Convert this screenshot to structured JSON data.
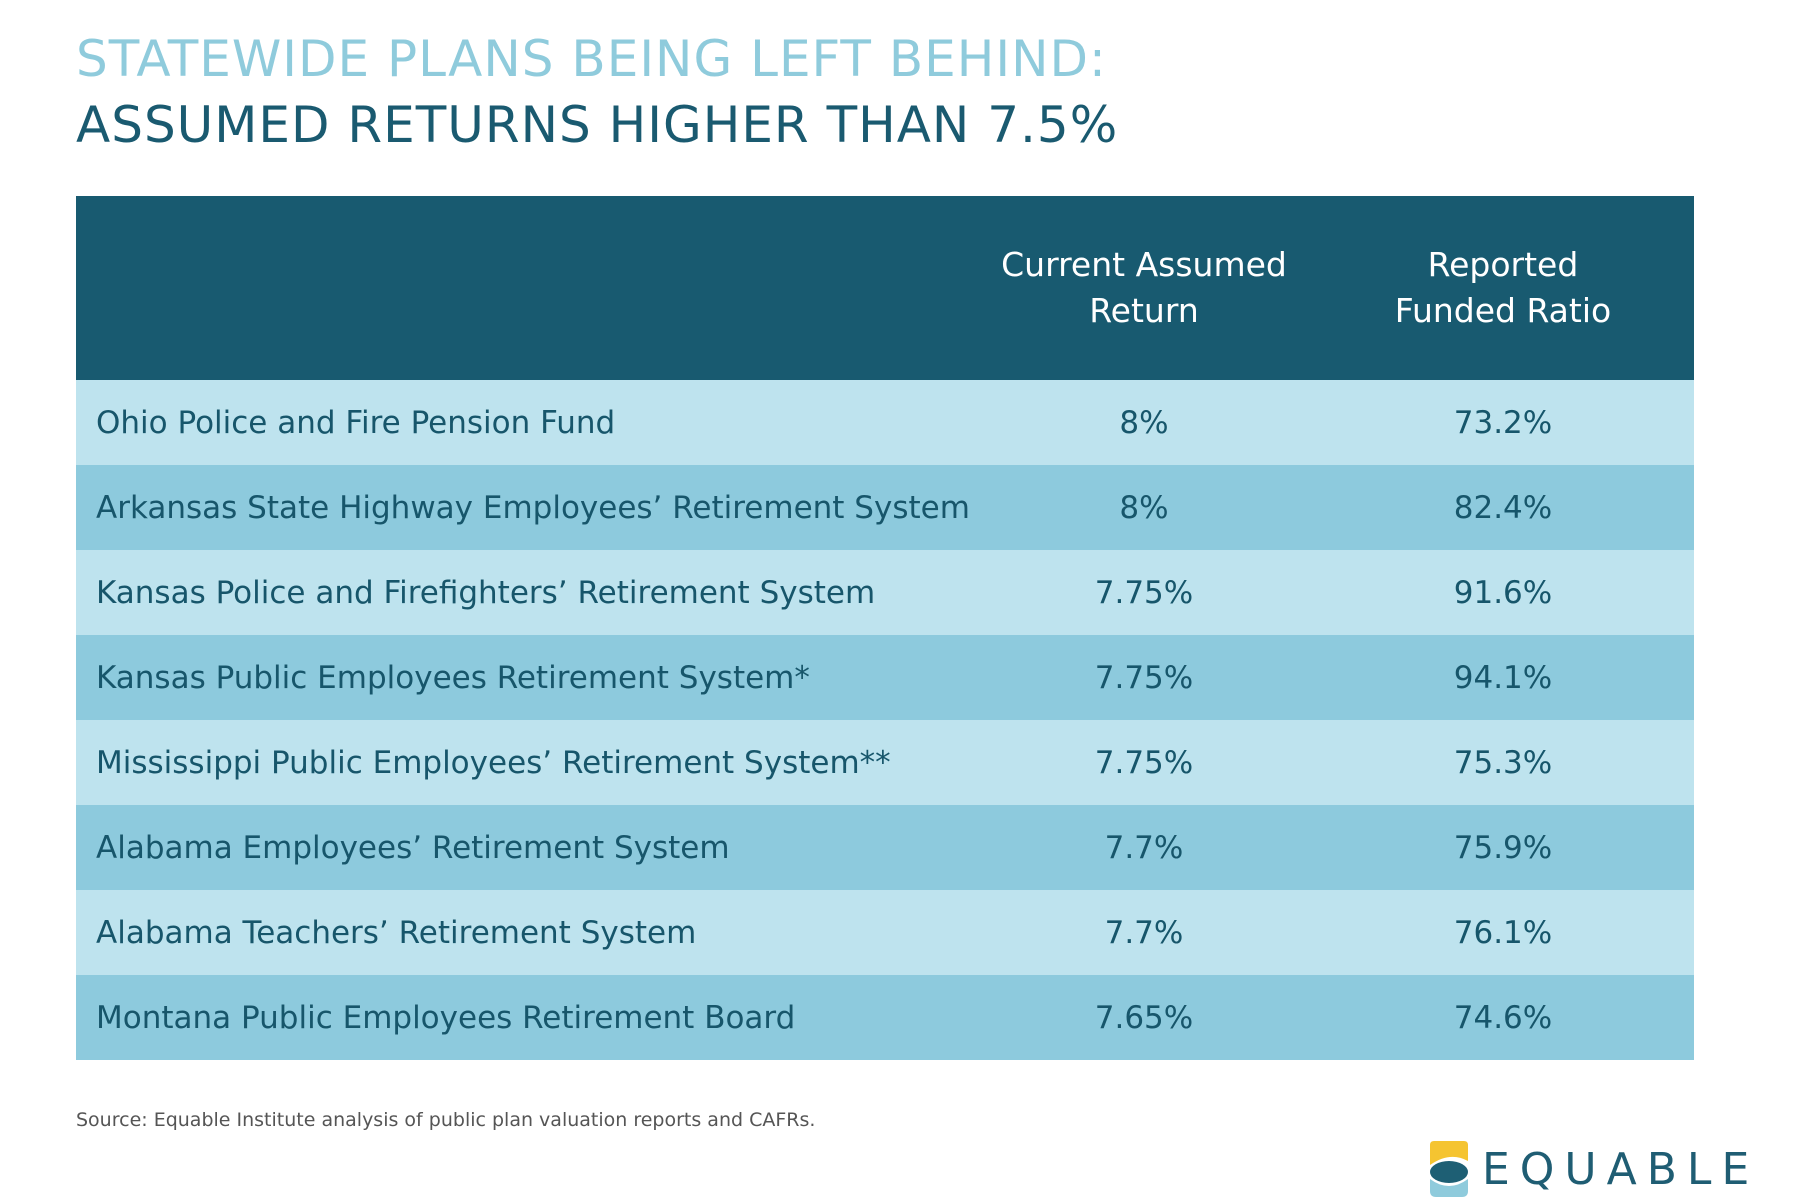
{
  "title": {
    "line1": "STATEWIDE PLANS BEING LEFT BEHIND:",
    "line2": "ASSUMED RETURNS HIGHER THAN 7.5%"
  },
  "chart_data": {
    "type": "table",
    "columns": [
      "",
      "Current Assumed\nReturn",
      "Reported\nFunded Ratio"
    ],
    "rows": [
      {
        "plan": "Ohio Police and Fire Pension Fund",
        "assumed_return": "8%",
        "funded_ratio": "73.2%"
      },
      {
        "plan": "Arkansas State Highway Employees’ Retirement System",
        "assumed_return": "8%",
        "funded_ratio": "82.4%"
      },
      {
        "plan": "Kansas Police and Firefighters’ Retirement System",
        "assumed_return": "7.75%",
        "funded_ratio": "91.6%"
      },
      {
        "plan": "Kansas Public Employees Retirement System*",
        "assumed_return": "7.75%",
        "funded_ratio": "94.1%"
      },
      {
        "plan": "Mississippi Public Employees’ Retirement System**",
        "assumed_return": "7.75%",
        "funded_ratio": "75.3%"
      },
      {
        "plan": "Alabama Employees’ Retirement System",
        "assumed_return": "7.7%",
        "funded_ratio": "75.9%"
      },
      {
        "plan": "Alabama Teachers’ Retirement System",
        "assumed_return": "7.7%",
        "funded_ratio": "76.1%"
      },
      {
        "plan": "Montana Public Employees Retirement Board",
        "assumed_return": "7.65%",
        "funded_ratio": "74.6%"
      }
    ]
  },
  "source": "Source: Equable Institute analysis of public plan valuation reports and CAFRs.",
  "logo": {
    "text": "EQUABLE",
    "colors": {
      "yellow": "#f5c431",
      "teal": "#1e5f74",
      "light": "#8fcbdc"
    }
  },
  "colors": {
    "header_bg": "#185a70",
    "row_light": "#bee3ee",
    "row_dark": "#8dcadd",
    "title_light": "#8fcbdc",
    "title_dark": "#1a5a70"
  }
}
